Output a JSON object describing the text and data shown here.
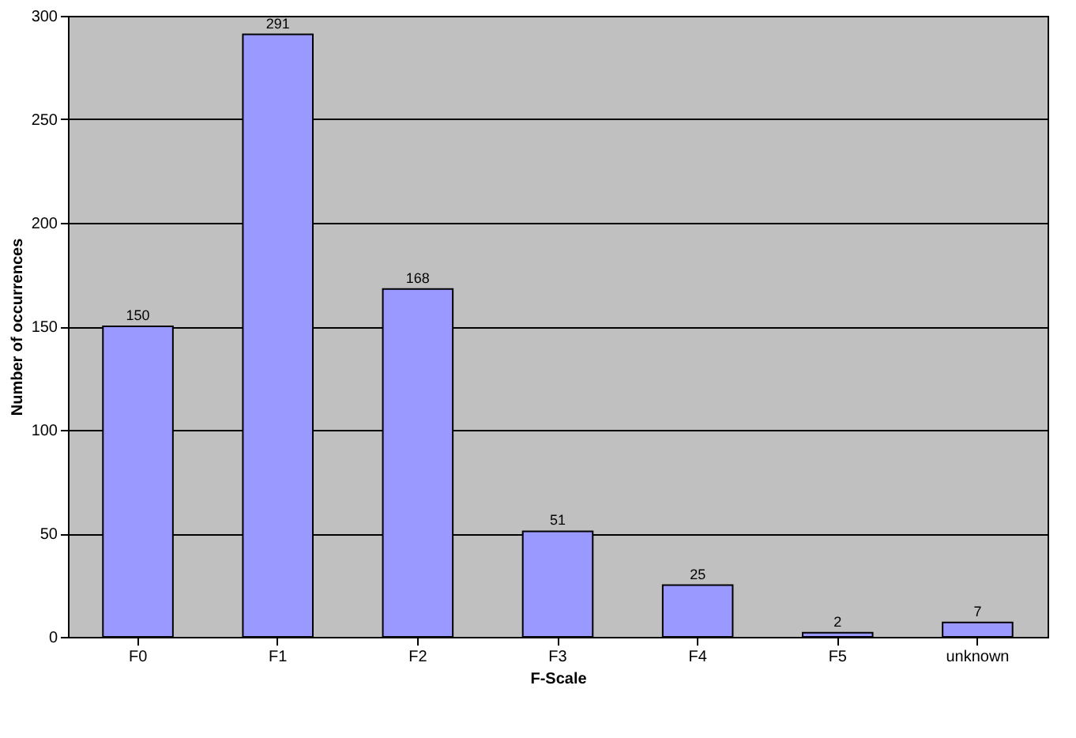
{
  "chart_data": {
    "type": "bar",
    "xlabel": "F-Scale",
    "ylabel": "Number of occurrences",
    "categories": [
      "F0",
      "F1",
      "F2",
      "F3",
      "F4",
      "F5",
      "unknown"
    ],
    "values": [
      150,
      291,
      168,
      51,
      25,
      2,
      7
    ],
    "color": "#9999ff",
    "ylim": [
      0,
      300
    ],
    "yticks": [
      0,
      50,
      100,
      150,
      200,
      250,
      300
    ],
    "grid": "y",
    "data_labels": true
  }
}
